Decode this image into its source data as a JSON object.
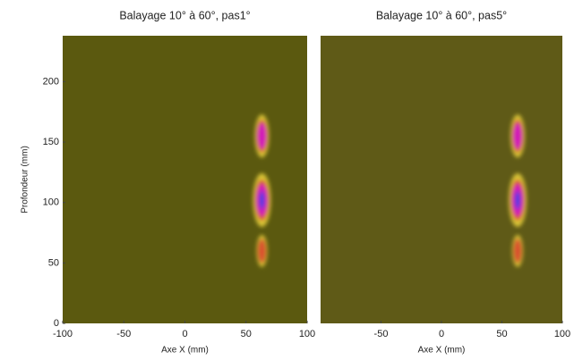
{
  "chart_data": [
    {
      "type": "heatmap",
      "title": "Balayage 10° à 60°, pas1°",
      "x_label": "Axe  X (mm)",
      "y_label": "Profondeur  (mm)",
      "xlim": [
        -100,
        100
      ],
      "ylim": [
        0,
        238
      ],
      "xticks": [
        -100,
        -50,
        0,
        50,
        100
      ],
      "yticks": [
        0,
        50,
        100,
        150,
        200
      ],
      "background": "#5b590f",
      "x": [
        63,
        63,
        63
      ],
      "y": [
        155,
        102,
        60
      ],
      "values": [
        0.8,
        1,
        0.45
      ],
      "grid": false
    },
    {
      "type": "heatmap",
      "title": "Balayage 10° à 60°, pas5°",
      "x_label": "Axe  X (mm)",
      "xlim": [
        -100,
        100
      ],
      "ylim": [
        0,
        238
      ],
      "xticks": [
        -50,
        0,
        50,
        100
      ],
      "background": "#5f5a17",
      "x": [
        63,
        63,
        63
      ],
      "y": [
        155,
        102,
        60
      ],
      "values": [
        0.8,
        1,
        0.45
      ],
      "grid": false
    }
  ]
}
